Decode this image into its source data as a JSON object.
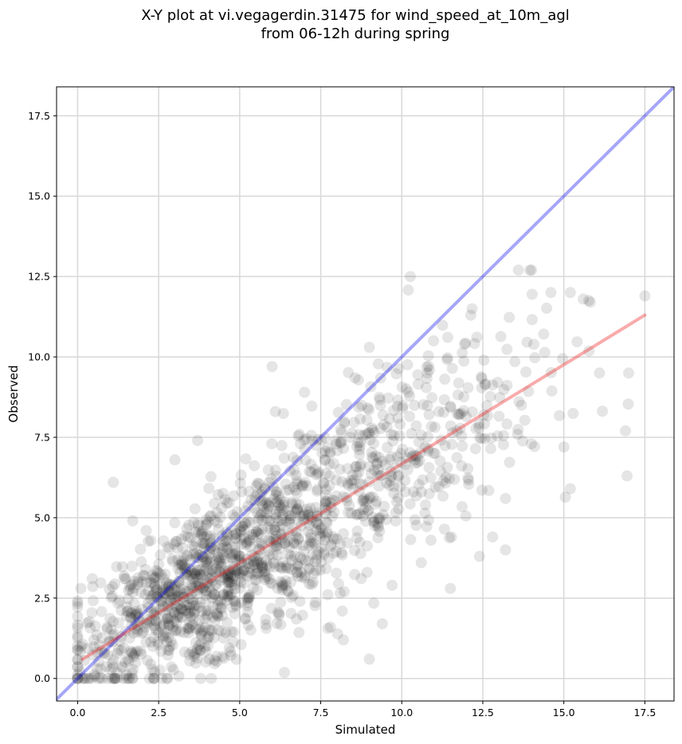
{
  "chart_data": {
    "type": "scatter",
    "title_line1": "X-Y plot at vi.vegagerdin.31475 for wind_speed_at_10m_agl",
    "title_line2": "from 06-12h during spring",
    "xlabel": "Simulated",
    "ylabel": "Observed",
    "xlim": [
      -0.65,
      18.4
    ],
    "ylim": [
      -0.7,
      18.4
    ],
    "xticks": [
      0.0,
      2.5,
      5.0,
      7.5,
      10.0,
      12.5,
      15.0,
      17.5
    ],
    "yticks": [
      0.0,
      2.5,
      5.0,
      7.5,
      10.0,
      12.5,
      15.0,
      17.5
    ],
    "xtick_labels": [
      "0.0",
      "2.5",
      "5.0",
      "7.5",
      "10.0",
      "12.5",
      "15.0",
      "17.5"
    ],
    "ytick_labels": [
      "0.0",
      "2.5",
      "5.0",
      "7.5",
      "10.0",
      "12.5",
      "15.0",
      "17.5"
    ],
    "grid": true,
    "colors": {
      "points": "#000000",
      "one_to_one": "#0000ee",
      "fit": "#ee2222",
      "grid": "#d8d8d8"
    },
    "one_to_one_line": {
      "slope": 1.0,
      "intercept": 0.0
    },
    "fit_line": {
      "x": [
        0.15,
        17.5
      ],
      "y": [
        0.6,
        11.3
      ]
    },
    "points_cloud": {
      "count": 1500,
      "x_range": [
        0.0,
        17.5
      ],
      "y_range": [
        0.0,
        12.7
      ],
      "approx_relation": "observed ≈ 0.62 × simulated + 0.55"
    },
    "points": [
      {
        "x": 0.1,
        "y": 2.8
      },
      {
        "x": 1.1,
        "y": 6.1
      },
      {
        "x": 1.7,
        "y": 4.9
      },
      {
        "x": 3.0,
        "y": 6.8
      },
      {
        "x": 3.7,
        "y": 7.4
      },
      {
        "x": 6.0,
        "y": 9.7
      },
      {
        "x": 6.1,
        "y": 8.3
      },
      {
        "x": 7.0,
        "y": 8.9
      },
      {
        "x": 9.0,
        "y": 10.3
      },
      {
        "x": 9.0,
        "y": 0.6
      },
      {
        "x": 13.6,
        "y": 12.7
      },
      {
        "x": 14.6,
        "y": 12.0
      },
      {
        "x": 15.2,
        "y": 12.0
      },
      {
        "x": 15.6,
        "y": 11.8
      },
      {
        "x": 17.5,
        "y": 11.9
      },
      {
        "x": 17.0,
        "y": 9.5
      },
      {
        "x": 16.9,
        "y": 7.7
      },
      {
        "x": 16.95,
        "y": 6.3
      },
      {
        "x": 15.2,
        "y": 5.9
      },
      {
        "x": 13.2,
        "y": 4.0
      },
      {
        "x": 12.8,
        "y": 4.4
      },
      {
        "x": 11.5,
        "y": 2.8
      },
      {
        "x": 9.4,
        "y": 1.7
      },
      {
        "x": 8.2,
        "y": 1.2
      },
      {
        "x": 0.6,
        "y": 0.3
      },
      {
        "x": 0.5,
        "y": 1.2
      },
      {
        "x": 3.8,
        "y": 0.0
      },
      {
        "x": 16.1,
        "y": 9.5
      },
      {
        "x": 15.0,
        "y": 7.2
      },
      {
        "x": 13.2,
        "y": 5.6
      },
      {
        "x": 14.0,
        "y": 7.3
      },
      {
        "x": 12.4,
        "y": 3.8
      },
      {
        "x": 10.9,
        "y": 4.3
      },
      {
        "x": 10.6,
        "y": 3.6
      },
      {
        "x": 9.7,
        "y": 2.9
      },
      {
        "x": 7.8,
        "y": 1.6
      }
    ]
  }
}
